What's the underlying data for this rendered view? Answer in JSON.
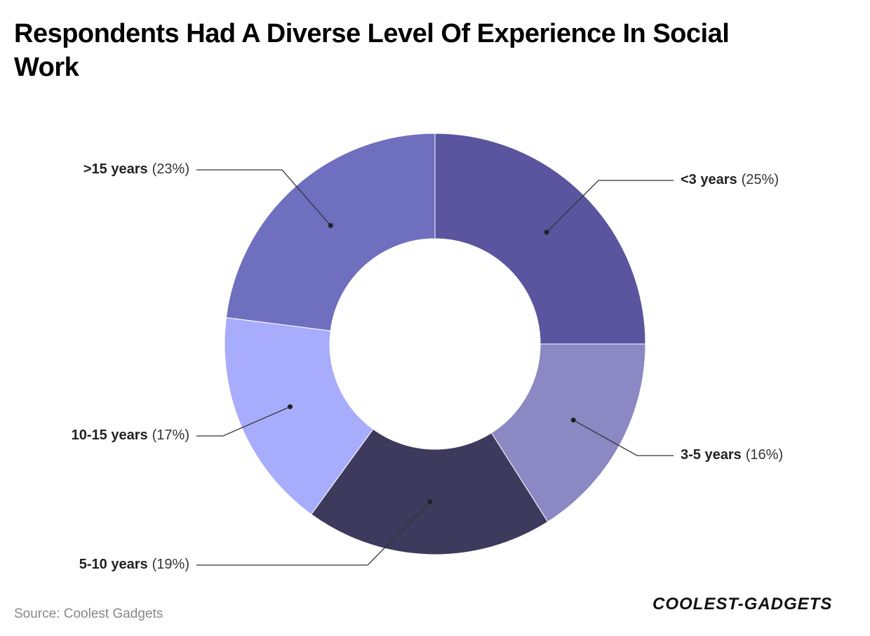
{
  "chart_data": {
    "type": "donut",
    "title_lines": [
      "Respondents Had A Diverse Level Of Experience In Social",
      "Work"
    ],
    "categories": [
      "<3 years",
      "3-5 years",
      "5-10 years",
      "10-15 years",
      ">15 years"
    ],
    "values": [
      25,
      16,
      19,
      17,
      23
    ],
    "value_labels": [
      "(25%)",
      "(16%)",
      "(19%)",
      "(17%)",
      "(23%)"
    ],
    "colors": [
      "#5a559e",
      "#8b88c4",
      "#3d3a5e",
      "#a8acfc",
      "#6e6fbf"
    ],
    "source": "Source: Coolest Gadgets",
    "logo": "COOLEST-GADGETS"
  }
}
